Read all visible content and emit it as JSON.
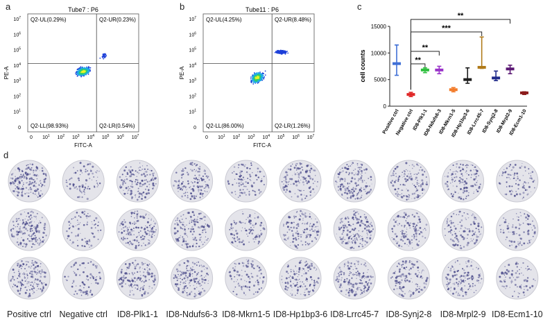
{
  "panels": {
    "a": {
      "letter": "a",
      "title": "Tube7 : P6",
      "xlabel": "FITC-A",
      "ylabel": "PE-A",
      "quadrants": {
        "UL": "Q2-UL(0.29%)",
        "UR": "Q2-UR(0.23%)",
        "LL": "Q2-LL(98.93%)",
        "LR": "Q2-LR(0.54%)"
      }
    },
    "b": {
      "letter": "b",
      "title": "Tube11 : P6",
      "xlabel": "FITC-A",
      "ylabel": "PE-A",
      "quadrants": {
        "UL": "Q2-UL(4.25%)",
        "UR": "Q2-UR(8.48%)",
        "LL": "Q2-LL(86.00%)",
        "LR": "Q2-LR(1.26%)"
      }
    },
    "c": {
      "letter": "c"
    },
    "d": {
      "letter": "d"
    }
  },
  "flow_axis_ticks": {
    "x": [
      "0",
      "10",
      "10",
      "10",
      "10",
      "10",
      "10",
      "10"
    ],
    "x_exp": [
      "",
      "1",
      "2",
      "3",
      "4",
      "5",
      "6",
      "7"
    ],
    "y": [
      "10",
      "10",
      "10",
      "10",
      "10",
      "10",
      "10",
      "0"
    ],
    "y_exp": [
      "7",
      "6",
      "5",
      "4",
      "3",
      "2",
      "1",
      ""
    ]
  },
  "chart_data": {
    "type": "scatter",
    "ylabel": "cell counts",
    "ylim": [
      0,
      15000
    ],
    "yticks": [
      "0",
      "5000",
      "10000",
      "15000"
    ],
    "categories": [
      "Positive ctrl",
      "Negative ctrl",
      "ID8-Plk1-1",
      "ID8-Ndufs6-3",
      "ID8-Mkrn1-5",
      "ID8-Hp1bp3-6",
      "ID8-Lrrc45-7",
      "ID8-Synj2-8",
      "ID8-Mrpl2-9",
      "ID8-Ecm1-10"
    ],
    "mean": [
      8000,
      2200,
      6800,
      6800,
      3100,
      5000,
      7300,
      5300,
      7000,
      2500
    ],
    "lower": [
      5800,
      1800,
      6300,
      6100,
      2700,
      4300,
      7100,
      4800,
      6100,
      2200
    ],
    "upper": [
      11500,
      2600,
      7200,
      7500,
      3500,
      7200,
      13000,
      6600,
      7700,
      2700
    ],
    "colors": [
      "#3f6fd6",
      "#e02626",
      "#2fbf3f",
      "#9a34c9",
      "#f27b2a",
      "#1f1f1f",
      "#b07a19",
      "#1f2a8a",
      "#5a1773",
      "#8b1a1a"
    ],
    "significance": [
      {
        "from": "Negative ctrl",
        "to": "ID8-Plk1-1",
        "label": "**"
      },
      {
        "from": "Negative ctrl",
        "to": "ID8-Ndufs6-3",
        "label": "**"
      },
      {
        "from": "Negative ctrl",
        "to": "ID8-Lrrc45-7",
        "label": "***"
      },
      {
        "from": "Negative ctrl",
        "to": "ID8-Mrpl2-9",
        "label": "**"
      }
    ]
  },
  "wells": {
    "columns": [
      "Positive ctrl",
      "Negative ctrl",
      "ID8-Plk1-1",
      "ID8-Ndufs6-3",
      "ID8-Mkrn1-5",
      "ID8-Hp1bp3-6",
      "ID8-Lrrc45-7",
      "ID8-Synj2-8",
      "ID8-Mrpl2-9",
      "ID8-Ecm1-10"
    ],
    "density": [
      0.8,
      0.25,
      0.65,
      0.7,
      0.35,
      0.55,
      0.75,
      0.55,
      0.5,
      0.3
    ],
    "dot_color": "#4a4a8a",
    "well_color": "#e4e4ea"
  }
}
